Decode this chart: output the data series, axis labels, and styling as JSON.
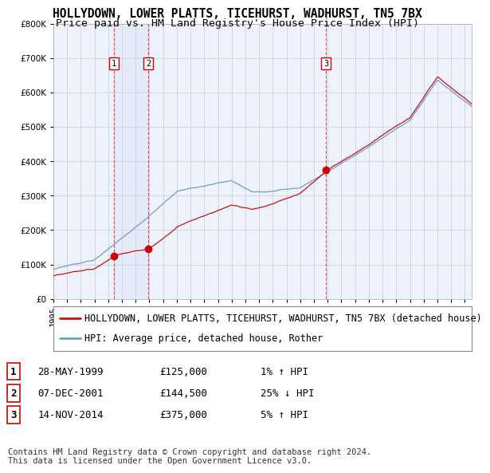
{
  "title": "HOLLYDOWN, LOWER PLATTS, TICEHURST, WADHURST, TN5 7BX",
  "subtitle": "Price paid vs. HM Land Registry's House Price Index (HPI)",
  "ylim": [
    0,
    800000
  ],
  "xlim_start": 1995.0,
  "xlim_end": 2025.5,
  "background_color": "#ffffff",
  "plot_bg_color": "#eef2fb",
  "grid_color": "#d0d8e8",
  "sale_dates": [
    1999.41,
    2001.92,
    2014.87
  ],
  "sale_prices": [
    125000,
    144500,
    375000
  ],
  "sale_labels": [
    "1",
    "2",
    "3"
  ],
  "vline_color": "#dd3333",
  "sale_dot_color": "#cc0000",
  "red_line_color": "#cc1111",
  "blue_line_color": "#7799cc",
  "legend_red_label": "HOLLYDOWN, LOWER PLATTS, TICEHURST, WADHURST, TN5 7BX (detached house)",
  "legend_blue_label": "HPI: Average price, detached house, Rother",
  "table_data": [
    [
      "1",
      "28-MAY-1999",
      "£125,000",
      "1% ↑ HPI"
    ],
    [
      "2",
      "07-DEC-2001",
      "£144,500",
      "25% ↓ HPI"
    ],
    [
      "3",
      "14-NOV-2014",
      "£375,000",
      "5% ↑ HPI"
    ]
  ],
  "footnote": "Contains HM Land Registry data © Crown copyright and database right 2024.\nThis data is licensed under the Open Government Licence v3.0.",
  "title_fontsize": 10.5,
  "subtitle_fontsize": 9.5,
  "tick_fontsize": 7.5,
  "legend_fontsize": 8.5,
  "table_fontsize": 9,
  "footnote_fontsize": 7.5
}
